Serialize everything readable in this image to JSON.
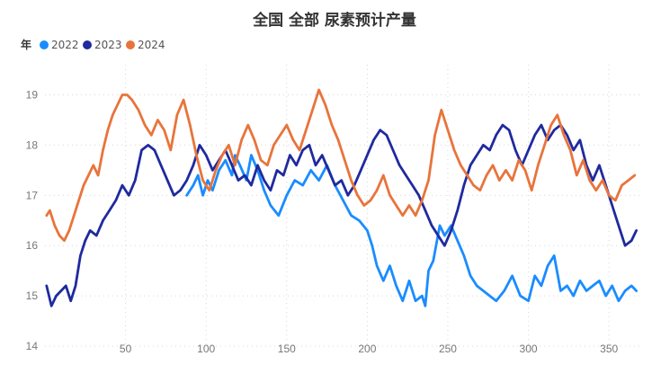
{
  "chart_data": {
    "type": "line",
    "title": "全国 全部 尿素预计产量",
    "legend_title": "年",
    "legend_position": "top-left",
    "xlim": [
      0,
      370
    ],
    "ylim": [
      14,
      19.6
    ],
    "x_ticks": [
      50,
      100,
      150,
      200,
      250,
      300,
      350
    ],
    "y_ticks": [
      14,
      15,
      16,
      17,
      18,
      19
    ],
    "grid": true,
    "series": [
      {
        "name": "2022",
        "color": "#1a8cff",
        "x": [
          88,
          92,
          95,
          98,
          101,
          104,
          108,
          112,
          116,
          118,
          121,
          125,
          128,
          132,
          136,
          140,
          145,
          150,
          155,
          160,
          165,
          170,
          175,
          180,
          185,
          190,
          195,
          200,
          203,
          206,
          210,
          214,
          218,
          222,
          226,
          230,
          234,
          236,
          238,
          241,
          245,
          248,
          252,
          256,
          260,
          264,
          268,
          272,
          276,
          280,
          285,
          290,
          295,
          300,
          304,
          308,
          312,
          316,
          320,
          324,
          328,
          332,
          336,
          340,
          344,
          348,
          352,
          356,
          360,
          364,
          367
        ],
        "values": [
          17.0,
          17.2,
          17.4,
          17.0,
          17.3,
          17.1,
          17.5,
          17.7,
          17.4,
          17.8,
          17.6,
          17.3,
          17.8,
          17.5,
          17.1,
          16.8,
          16.6,
          17.0,
          17.3,
          17.2,
          17.5,
          17.3,
          17.6,
          17.2,
          16.9,
          16.6,
          16.5,
          16.3,
          16.0,
          15.6,
          15.3,
          15.6,
          15.2,
          14.9,
          15.3,
          14.9,
          15.0,
          14.8,
          15.5,
          15.7,
          16.4,
          16.2,
          16.4,
          16.1,
          15.8,
          15.4,
          15.2,
          15.1,
          15.0,
          14.9,
          15.1,
          15.4,
          15.0,
          14.9,
          15.4,
          15.2,
          15.6,
          15.8,
          15.1,
          15.2,
          15.0,
          15.3,
          15.1,
          15.2,
          15.3,
          15.0,
          15.2,
          14.9,
          15.1,
          15.2,
          15.1
        ]
      },
      {
        "name": "2023",
        "color": "#1f2a9e",
        "x": [
          1,
          4,
          7,
          10,
          13,
          16,
          19,
          22,
          25,
          28,
          32,
          36,
          40,
          44,
          48,
          52,
          56,
          60,
          64,
          68,
          72,
          76,
          80,
          84,
          88,
          92,
          96,
          100,
          104,
          108,
          112,
          116,
          120,
          124,
          128,
          132,
          136,
          140,
          144,
          148,
          152,
          156,
          160,
          164,
          168,
          172,
          176,
          180,
          184,
          188,
          192,
          196,
          200,
          204,
          208,
          212,
          216,
          220,
          224,
          228,
          232,
          236,
          240,
          244,
          248,
          252,
          256,
          260,
          264,
          268,
          272,
          276,
          280,
          284,
          288,
          292,
          296,
          300,
          304,
          308,
          312,
          316,
          320,
          324,
          328,
          332,
          336,
          340,
          344,
          348,
          352,
          356,
          360,
          364,
          367
        ],
        "values": [
          15.2,
          14.8,
          15.0,
          15.1,
          15.2,
          14.9,
          15.2,
          15.8,
          16.1,
          16.3,
          16.2,
          16.5,
          16.7,
          16.9,
          17.2,
          17.0,
          17.3,
          17.9,
          18.0,
          17.9,
          17.6,
          17.3,
          17.0,
          17.1,
          17.3,
          17.6,
          18.0,
          17.8,
          17.5,
          17.7,
          17.9,
          17.6,
          17.3,
          17.4,
          17.2,
          17.6,
          17.3,
          17.1,
          17.5,
          17.4,
          17.8,
          17.6,
          17.9,
          18.0,
          17.6,
          17.8,
          17.5,
          17.2,
          17.3,
          17.0,
          17.2,
          17.5,
          17.8,
          18.1,
          18.3,
          18.2,
          17.9,
          17.6,
          17.4,
          17.2,
          17.0,
          16.7,
          16.4,
          16.2,
          16.0,
          16.3,
          16.7,
          17.2,
          17.6,
          17.8,
          18.0,
          17.9,
          18.2,
          18.4,
          18.3,
          17.9,
          17.6,
          17.9,
          18.2,
          18.4,
          18.1,
          18.3,
          18.4,
          18.2,
          17.9,
          18.1,
          17.6,
          17.3,
          17.6,
          17.2,
          16.8,
          16.4,
          16.0,
          16.1,
          16.3
        ]
      },
      {
        "name": "2024",
        "color": "#e8743b",
        "x": [
          1,
          3,
          6,
          9,
          12,
          15,
          18,
          21,
          24,
          27,
          30,
          33,
          36,
          39,
          42,
          45,
          48,
          51,
          54,
          58,
          62,
          66,
          70,
          74,
          78,
          82,
          86,
          90,
          94,
          98,
          102,
          106,
          110,
          114,
          118,
          122,
          126,
          130,
          134,
          138,
          142,
          146,
          150,
          154,
          158,
          162,
          166,
          170,
          174,
          178,
          182,
          186,
          190,
          194,
          198,
          202,
          206,
          210,
          214,
          218,
          222,
          226,
          230,
          234,
          238,
          242,
          246,
          250,
          254,
          258,
          262,
          266,
          270,
          274,
          278,
          282,
          286,
          290,
          294,
          298,
          302,
          306,
          310,
          314,
          318,
          322,
          326,
          330,
          334,
          338,
          342,
          346,
          350,
          354,
          358,
          362,
          366
        ],
        "values": [
          16.6,
          16.7,
          16.4,
          16.2,
          16.1,
          16.3,
          16.6,
          16.9,
          17.2,
          17.4,
          17.6,
          17.4,
          17.9,
          18.3,
          18.6,
          18.8,
          19.0,
          19.0,
          18.9,
          18.7,
          18.4,
          18.2,
          18.5,
          18.3,
          17.9,
          18.6,
          18.9,
          18.4,
          17.8,
          17.3,
          17.1,
          17.5,
          17.8,
          18.0,
          17.6,
          18.1,
          18.4,
          18.1,
          17.7,
          17.6,
          18.0,
          18.2,
          18.4,
          18.1,
          17.9,
          18.3,
          18.7,
          19.1,
          18.8,
          18.4,
          18.1,
          17.7,
          17.3,
          17.0,
          16.8,
          16.9,
          17.1,
          17.4,
          17.0,
          16.8,
          16.6,
          16.8,
          16.6,
          16.9,
          17.3,
          18.2,
          18.7,
          18.3,
          17.9,
          17.6,
          17.4,
          17.2,
          17.1,
          17.4,
          17.6,
          17.3,
          17.5,
          17.3,
          17.7,
          17.5,
          17.1,
          17.6,
          18.0,
          18.4,
          18.6,
          18.2,
          17.9,
          17.4,
          17.7,
          17.3,
          17.1,
          17.3,
          17.0,
          16.9,
          17.2,
          17.3,
          17.4
        ]
      }
    ]
  }
}
